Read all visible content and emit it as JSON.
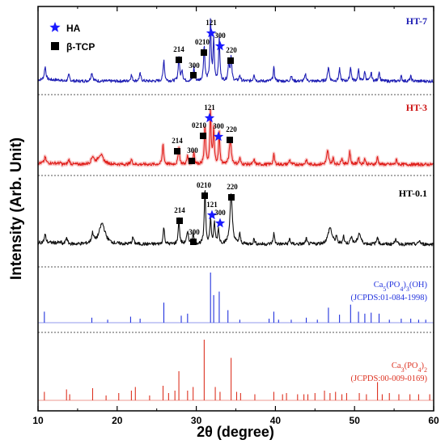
{
  "chart_data": {
    "type": "line",
    "xlabel": "2θ (degree)",
    "ylabel": "Intensity (Arb. Unit)",
    "xlim": [
      10,
      60
    ],
    "x_ticks": [
      "10",
      "20",
      "30",
      "40",
      "50",
      "60"
    ],
    "grid": false,
    "legend": {
      "placement": "top-left",
      "items": [
        {
          "name": "HA",
          "marker": "star",
          "color": "#1a1aff"
        },
        {
          "name": "β-TCP",
          "marker": "square",
          "color": "#000000"
        }
      ]
    },
    "series": [
      {
        "name": "HT-7",
        "color": "#1e1eb4",
        "peaks": [
          {
            "x": 10.9,
            "y": 0.22,
            "w": 0.12
          },
          {
            "x": 13.9,
            "y": 0.1,
            "w": 0.12
          },
          {
            "x": 16.8,
            "y": 0.14,
            "w": 0.14
          },
          {
            "x": 21.8,
            "y": 0.1,
            "w": 0.12
          },
          {
            "x": 22.9,
            "y": 0.12,
            "w": 0.12
          },
          {
            "x": 25.9,
            "y": 0.36,
            "w": 0.1
          },
          {
            "x": 27.8,
            "y": 0.4,
            "w": 0.1
          },
          {
            "x": 28.2,
            "y": 0.18,
            "w": 0.1
          },
          {
            "x": 29.7,
            "y": 0.22,
            "w": 0.1
          },
          {
            "x": 31.0,
            "y": 0.58,
            "w": 0.1
          },
          {
            "x": 31.8,
            "y": 1.0,
            "w": 0.09
          },
          {
            "x": 32.2,
            "y": 0.68,
            "w": 0.09
          },
          {
            "x": 32.9,
            "y": 0.72,
            "w": 0.09
          },
          {
            "x": 34.1,
            "y": 0.32,
            "w": 0.1
          },
          {
            "x": 34.4,
            "y": 0.38,
            "w": 0.1
          },
          {
            "x": 35.5,
            "y": 0.1,
            "w": 0.1
          },
          {
            "x": 37.3,
            "y": 0.12,
            "w": 0.1
          },
          {
            "x": 39.8,
            "y": 0.22,
            "w": 0.1
          },
          {
            "x": 42.0,
            "y": 0.1,
            "w": 0.1
          },
          {
            "x": 43.8,
            "y": 0.12,
            "w": 0.1
          },
          {
            "x": 46.7,
            "y": 0.24,
            "w": 0.12
          },
          {
            "x": 48.1,
            "y": 0.2,
            "w": 0.1
          },
          {
            "x": 49.5,
            "y": 0.24,
            "w": 0.1
          },
          {
            "x": 50.5,
            "y": 0.18,
            "w": 0.1
          },
          {
            "x": 51.3,
            "y": 0.16,
            "w": 0.1
          },
          {
            "x": 52.1,
            "y": 0.14,
            "w": 0.1
          },
          {
            "x": 53.1,
            "y": 0.16,
            "w": 0.1
          },
          {
            "x": 55.9,
            "y": 0.08,
            "w": 0.1
          },
          {
            "x": 57.1,
            "y": 0.08,
            "w": 0.1
          }
        ]
      },
      {
        "name": "HT-3",
        "color": "#e0201c",
        "peaks": [
          {
            "x": 10.9,
            "y": 0.1,
            "w": 0.12
          },
          {
            "x": 13.9,
            "y": 0.08,
            "w": 0.12
          },
          {
            "x": 16.9,
            "y": 0.12,
            "w": 0.2
          },
          {
            "x": 17.9,
            "y": 0.16,
            "w": 0.4
          },
          {
            "x": 21.8,
            "y": 0.08,
            "w": 0.12
          },
          {
            "x": 25.8,
            "y": 0.34,
            "w": 0.1
          },
          {
            "x": 27.8,
            "y": 0.3,
            "w": 0.1
          },
          {
            "x": 28.9,
            "y": 0.14,
            "w": 0.1
          },
          {
            "x": 29.7,
            "y": 0.2,
            "w": 0.1
          },
          {
            "x": 31.1,
            "y": 0.62,
            "w": 0.1
          },
          {
            "x": 31.8,
            "y": 0.86,
            "w": 0.09
          },
          {
            "x": 32.2,
            "y": 0.58,
            "w": 0.09
          },
          {
            "x": 32.9,
            "y": 0.52,
            "w": 0.09
          },
          {
            "x": 34.3,
            "y": 0.42,
            "w": 0.14
          },
          {
            "x": 35.5,
            "y": 0.1,
            "w": 0.1
          },
          {
            "x": 37.3,
            "y": 0.08,
            "w": 0.1
          },
          {
            "x": 39.8,
            "y": 0.16,
            "w": 0.1
          },
          {
            "x": 41.8,
            "y": 0.08,
            "w": 0.1
          },
          {
            "x": 43.9,
            "y": 0.08,
            "w": 0.1
          },
          {
            "x": 46.6,
            "y": 0.22,
            "w": 0.14
          },
          {
            "x": 47.3,
            "y": 0.1,
            "w": 0.1
          },
          {
            "x": 48.4,
            "y": 0.12,
            "w": 0.1
          },
          {
            "x": 49.4,
            "y": 0.22,
            "w": 0.1
          },
          {
            "x": 50.5,
            "y": 0.12,
            "w": 0.1
          },
          {
            "x": 51.3,
            "y": 0.1,
            "w": 0.1
          },
          {
            "x": 52.9,
            "y": 0.12,
            "w": 0.1
          },
          {
            "x": 55.3,
            "y": 0.08,
            "w": 0.1
          }
        ]
      },
      {
        "name": "HT-0.1",
        "color": "#111111",
        "peaks": [
          {
            "x": 10.9,
            "y": 0.12,
            "w": 0.12
          },
          {
            "x": 13.6,
            "y": 0.1,
            "w": 0.12
          },
          {
            "x": 16.9,
            "y": 0.14,
            "w": 0.15
          },
          {
            "x": 18.1,
            "y": 0.3,
            "w": 0.45
          },
          {
            "x": 22.0,
            "y": 0.1,
            "w": 0.12
          },
          {
            "x": 25.9,
            "y": 0.25,
            "w": 0.1
          },
          {
            "x": 27.8,
            "y": 0.36,
            "w": 0.1
          },
          {
            "x": 28.9,
            "y": 0.16,
            "w": 0.15
          },
          {
            "x": 29.6,
            "y": 0.16,
            "w": 0.1
          },
          {
            "x": 31.1,
            "y": 0.82,
            "w": 0.1
          },
          {
            "x": 31.8,
            "y": 0.36,
            "w": 0.1
          },
          {
            "x": 32.3,
            "y": 0.3,
            "w": 0.1
          },
          {
            "x": 32.8,
            "y": 0.22,
            "w": 0.1
          },
          {
            "x": 34.4,
            "y": 0.72,
            "w": 0.18
          },
          {
            "x": 35.5,
            "y": 0.14,
            "w": 0.1
          },
          {
            "x": 37.3,
            "y": 0.08,
            "w": 0.1
          },
          {
            "x": 39.8,
            "y": 0.16,
            "w": 0.1
          },
          {
            "x": 41.8,
            "y": 0.08,
            "w": 0.1
          },
          {
            "x": 43.9,
            "y": 0.08,
            "w": 0.1
          },
          {
            "x": 46.9,
            "y": 0.24,
            "w": 0.3
          },
          {
            "x": 47.7,
            "y": 0.1,
            "w": 0.1
          },
          {
            "x": 48.6,
            "y": 0.12,
            "w": 0.1
          },
          {
            "x": 49.6,
            "y": 0.12,
            "w": 0.12
          },
          {
            "x": 50.6,
            "y": 0.16,
            "w": 0.22
          },
          {
            "x": 52.9,
            "y": 0.12,
            "w": 0.1
          },
          {
            "x": 55.2,
            "y": 0.1,
            "w": 0.1
          },
          {
            "x": 58.2,
            "y": 0.06,
            "w": 0.1
          }
        ]
      },
      {
        "name": "Ca5(PO4)3(OH) (JCPDS:01-084-1998)",
        "type": "stick",
        "color": "#2233dd",
        "sticks": [
          {
            "x": 10.8,
            "y": 0.22
          },
          {
            "x": 16.8,
            "y": 0.1
          },
          {
            "x": 18.8,
            "y": 0.06
          },
          {
            "x": 21.7,
            "y": 0.12
          },
          {
            "x": 22.9,
            "y": 0.08
          },
          {
            "x": 25.9,
            "y": 0.4
          },
          {
            "x": 28.1,
            "y": 0.14
          },
          {
            "x": 28.9,
            "y": 0.18
          },
          {
            "x": 31.8,
            "y": 1.0
          },
          {
            "x": 32.2,
            "y": 0.55
          },
          {
            "x": 32.9,
            "y": 0.62
          },
          {
            "x": 34.0,
            "y": 0.25
          },
          {
            "x": 35.5,
            "y": 0.06
          },
          {
            "x": 39.2,
            "y": 0.08
          },
          {
            "x": 39.8,
            "y": 0.22
          },
          {
            "x": 40.4,
            "y": 0.06
          },
          {
            "x": 42.0,
            "y": 0.06
          },
          {
            "x": 43.9,
            "y": 0.1
          },
          {
            "x": 45.3,
            "y": 0.06
          },
          {
            "x": 46.7,
            "y": 0.3
          },
          {
            "x": 48.1,
            "y": 0.16
          },
          {
            "x": 49.5,
            "y": 0.36
          },
          {
            "x": 50.5,
            "y": 0.22
          },
          {
            "x": 51.3,
            "y": 0.18
          },
          {
            "x": 52.1,
            "y": 0.2
          },
          {
            "x": 53.1,
            "y": 0.18
          },
          {
            "x": 54.4,
            "y": 0.06
          },
          {
            "x": 55.9,
            "y": 0.08
          },
          {
            "x": 57.1,
            "y": 0.08
          },
          {
            "x": 58.1,
            "y": 0.06
          },
          {
            "x": 59.0,
            "y": 0.06
          }
        ]
      },
      {
        "name": "Ca3(PO4)2 (JCPDS:00-009-0169)",
        "type": "stick",
        "color": "#dd3322",
        "sticks": [
          {
            "x": 10.8,
            "y": 0.14
          },
          {
            "x": 13.6,
            "y": 0.18
          },
          {
            "x": 14.0,
            "y": 0.1
          },
          {
            "x": 16.9,
            "y": 0.2
          },
          {
            "x": 18.6,
            "y": 0.08
          },
          {
            "x": 20.2,
            "y": 0.12
          },
          {
            "x": 21.8,
            "y": 0.16
          },
          {
            "x": 22.3,
            "y": 0.22
          },
          {
            "x": 24.1,
            "y": 0.08
          },
          {
            "x": 25.8,
            "y": 0.24
          },
          {
            "x": 26.5,
            "y": 0.12
          },
          {
            "x": 27.3,
            "y": 0.16
          },
          {
            "x": 27.8,
            "y": 0.48
          },
          {
            "x": 28.9,
            "y": 0.16
          },
          {
            "x": 29.6,
            "y": 0.22
          },
          {
            "x": 31.0,
            "y": 1.0
          },
          {
            "x": 32.4,
            "y": 0.22
          },
          {
            "x": 33.0,
            "y": 0.14
          },
          {
            "x": 34.4,
            "y": 0.7
          },
          {
            "x": 35.1,
            "y": 0.14
          },
          {
            "x": 35.6,
            "y": 0.12
          },
          {
            "x": 37.4,
            "y": 0.1
          },
          {
            "x": 39.8,
            "y": 0.14
          },
          {
            "x": 40.9,
            "y": 0.1
          },
          {
            "x": 41.4,
            "y": 0.12
          },
          {
            "x": 42.8,
            "y": 0.1
          },
          {
            "x": 43.6,
            "y": 0.1
          },
          {
            "x": 44.1,
            "y": 0.1
          },
          {
            "x": 45.0,
            "y": 0.12
          },
          {
            "x": 46.2,
            "y": 0.16
          },
          {
            "x": 46.9,
            "y": 0.12
          },
          {
            "x": 47.6,
            "y": 0.14
          },
          {
            "x": 48.4,
            "y": 0.1
          },
          {
            "x": 49.0,
            "y": 0.12
          },
          {
            "x": 50.6,
            "y": 0.12
          },
          {
            "x": 51.5,
            "y": 0.1
          },
          {
            "x": 52.9,
            "y": 0.3
          },
          {
            "x": 53.5,
            "y": 0.1
          },
          {
            "x": 54.4,
            "y": 0.12
          },
          {
            "x": 55.6,
            "y": 0.1
          },
          {
            "x": 57.0,
            "y": 0.1
          },
          {
            "x": 58.1,
            "y": 0.1
          },
          {
            "x": 59.5,
            "y": 0.1
          }
        ]
      }
    ],
    "peak_annotations": {
      "HT-7": [
        {
          "label": "121",
          "x": 31.8,
          "marker": "star"
        },
        {
          "label": "300",
          "x": 32.9,
          "marker": "star"
        },
        {
          "label": "0210",
          "x": 31.0,
          "marker": "square"
        },
        {
          "label": "214",
          "x": 27.8,
          "marker": "square"
        },
        {
          "label": "220",
          "x": 34.4,
          "marker": "square"
        },
        {
          "label": "300",
          "x": 29.7,
          "marker": "square"
        }
      ],
      "HT-3": [
        {
          "label": "121",
          "x": 31.8,
          "marker": "star"
        },
        {
          "label": "300",
          "x": 32.9,
          "marker": "star"
        },
        {
          "label": "0210",
          "x": 31.1,
          "marker": "square"
        },
        {
          "label": "214",
          "x": 27.8,
          "marker": "square"
        },
        {
          "label": "220",
          "x": 34.3,
          "marker": "square"
        },
        {
          "label": "300",
          "x": 29.7,
          "marker": "square"
        }
      ],
      "HT-0.1": [
        {
          "label": "0210",
          "x": 31.1,
          "marker": "square"
        },
        {
          "label": "220",
          "x": 34.4,
          "marker": "square"
        },
        {
          "label": "214",
          "x": 27.8,
          "marker": "square"
        },
        {
          "label": "121",
          "x": 31.8,
          "marker": "star"
        },
        {
          "label": "300",
          "x": 32.9,
          "marker": "star"
        },
        {
          "label": "300",
          "x": 29.6,
          "marker": "square"
        }
      ]
    }
  }
}
